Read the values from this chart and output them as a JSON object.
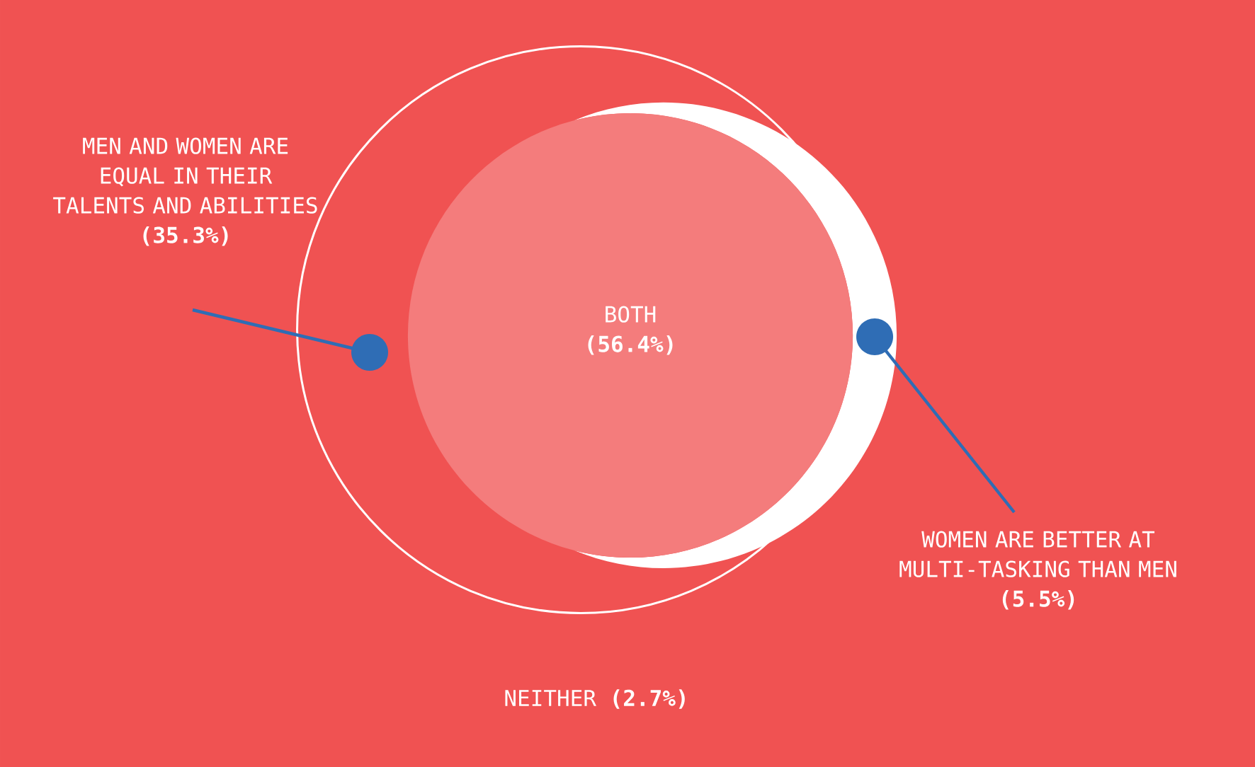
{
  "chart_data": {
    "type": "other",
    "categories": [
      "MEN AND WOMEN ARE EQUAL IN THEIR TALENTS AND ABILITIES",
      "BOTH",
      "WOMEN ARE BETTER AT MULTI-TASKING THAN MEN",
      "NEITHER"
    ],
    "values": [
      35.3,
      56.4,
      5.5,
      2.7
    ],
    "value_labels": [
      "(35.3%)",
      "(56.4%)",
      "(5.5%)",
      "(2.7%)"
    ],
    "colors": [
      "#f05252",
      "#f47c7c",
      "#ffffff",
      "#f05252"
    ]
  }
}
